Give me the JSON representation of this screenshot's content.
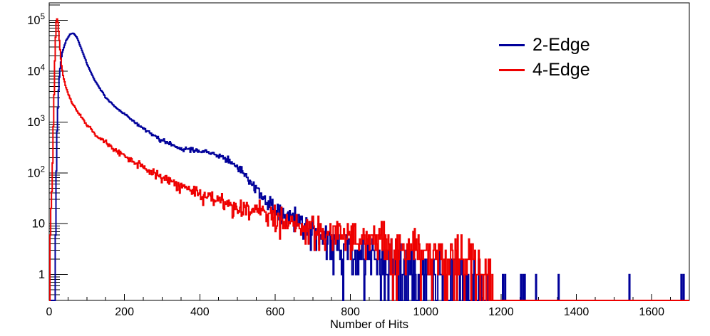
{
  "chart_data": {
    "type": "histogram-step-line",
    "title": "",
    "xlabel": "Number of Hits",
    "ylabel": "",
    "x_range": [
      0,
      1700
    ],
    "y_scale": "log",
    "y_range": [
      0.31,
      220000
    ],
    "x_major_tick_step": 200,
    "x_minor_tick_step": 50,
    "x_major_ticks": [
      0,
      200,
      400,
      600,
      800,
      1000,
      1200,
      1400,
      1600
    ],
    "y_tick_exponents": [
      0,
      1,
      2,
      3,
      4,
      5
    ],
    "y_tick_labels": [
      "1",
      "10",
      "10^2",
      "10^3",
      "10^4",
      "10^5"
    ],
    "bin_width": 2,
    "grid": false,
    "legend_position": "top-right",
    "series": [
      {
        "name": "2-Edge",
        "color": "#00009a",
        "seed": 7,
        "anchors_log10": [
          [
            0,
            -4
          ],
          [
            14,
            -4
          ],
          [
            16,
            0.0
          ],
          [
            18,
            1.5
          ],
          [
            20,
            2.6
          ],
          [
            24,
            3.5
          ],
          [
            28,
            4.0
          ],
          [
            34,
            4.35
          ],
          [
            45,
            4.6
          ],
          [
            55,
            4.72
          ],
          [
            64,
            4.75
          ],
          [
            74,
            4.66
          ],
          [
            85,
            4.45
          ],
          [
            100,
            4.15
          ],
          [
            120,
            3.83
          ],
          [
            150,
            3.48
          ],
          [
            180,
            3.27
          ],
          [
            210,
            3.1
          ],
          [
            250,
            2.86
          ],
          [
            300,
            2.63
          ],
          [
            350,
            2.48
          ],
          [
            400,
            2.43
          ],
          [
            435,
            2.38
          ],
          [
            465,
            2.28
          ],
          [
            500,
            2.12
          ],
          [
            530,
            1.88
          ],
          [
            560,
            1.58
          ],
          [
            600,
            1.32
          ],
          [
            650,
            1.1
          ],
          [
            700,
            0.93
          ],
          [
            760,
            0.6
          ],
          [
            820,
            0.38
          ],
          [
            880,
            0.24
          ],
          [
            950,
            0.13
          ],
          [
            1020,
            0.05
          ],
          [
            1080,
            -0.05
          ],
          [
            1130,
            -0.3
          ],
          [
            1165,
            -1.0
          ],
          [
            1210,
            -2.2
          ],
          [
            1700,
            -2.5
          ]
        ],
        "isolated_spikes": [
          1205,
          1211,
          1252,
          1258,
          1262,
          1352,
          1540,
          1678,
          1684
        ]
      },
      {
        "name": "4-Edge",
        "color": "#ee0000",
        "seed": 99,
        "anchors_log10": [
          [
            0,
            -4
          ],
          [
            1,
            -4
          ],
          [
            2,
            1.05
          ],
          [
            6,
            1.3
          ],
          [
            9,
            2.2
          ],
          [
            12,
            3.2
          ],
          [
            15,
            4.2
          ],
          [
            18,
            4.9
          ],
          [
            20,
            5.06
          ],
          [
            23,
            4.96
          ],
          [
            27,
            4.6
          ],
          [
            32,
            4.15
          ],
          [
            38,
            3.87
          ],
          [
            47,
            3.63
          ],
          [
            60,
            3.38
          ],
          [
            76,
            3.2
          ],
          [
            100,
            2.94
          ],
          [
            130,
            2.71
          ],
          [
            170,
            2.48
          ],
          [
            210,
            2.28
          ],
          [
            260,
            2.07
          ],
          [
            310,
            1.88
          ],
          [
            360,
            1.71
          ],
          [
            410,
            1.56
          ],
          [
            460,
            1.44
          ],
          [
            510,
            1.32
          ],
          [
            560,
            1.22
          ],
          [
            610,
            1.11
          ],
          [
            660,
            1.01
          ],
          [
            710,
            0.92
          ],
          [
            760,
            0.83
          ],
          [
            810,
            0.75
          ],
          [
            860,
            0.67
          ],
          [
            910,
            0.6
          ],
          [
            960,
            0.54
          ],
          [
            1010,
            0.48
          ],
          [
            1060,
            0.43
          ],
          [
            1100,
            0.38
          ],
          [
            1135,
            0.28
          ],
          [
            1160,
            0.05
          ],
          [
            1185,
            -0.6
          ],
          [
            1200,
            -2.5
          ],
          [
            1700,
            -3
          ]
        ],
        "isolated_spikes": []
      }
    ]
  },
  "colors": {
    "background": "#ffffff",
    "frame": "#000000",
    "text": "#000000"
  }
}
